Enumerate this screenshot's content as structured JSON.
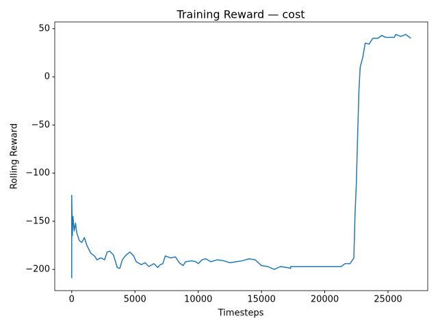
{
  "chart_data": {
    "type": "line",
    "title": "Training Reward — cost",
    "xlabel": "Timesteps",
    "ylabel": "Rolling Reward",
    "x": [
      0,
      0,
      50,
      100,
      200,
      300,
      400,
      600,
      800,
      1000,
      1200,
      1500,
      1800,
      2000,
      2300,
      2600,
      2800,
      3000,
      3300,
      3600,
      3800,
      4000,
      4300,
      4600,
      4900,
      5100,
      5500,
      5800,
      6100,
      6500,
      6800,
      7000,
      7200,
      7400,
      7800,
      8200,
      8500,
      8800,
      9000,
      9500,
      9800,
      10000,
      10300,
      10600,
      11000,
      11500,
      12000,
      12500,
      13000,
      13500,
      14000,
      14500,
      15000,
      15500,
      16000,
      16500,
      17000,
      17300,
      17300,
      20000,
      21300,
      21600,
      22000,
      22300,
      22400,
      22500,
      22600,
      22700,
      22800,
      23000,
      23200,
      23500,
      23800,
      24200,
      24500,
      24800,
      25500,
      25600,
      26000,
      26400,
      26800
    ],
    "series": [
      {
        "name": "reward",
        "color": "#1f77b4",
        "values": [
          -209,
          -123,
          -165,
          -145,
          -160,
          -152,
          -162,
          -170,
          -172,
          -167,
          -175,
          -183,
          -186,
          -190,
          -188,
          -190,
          -182,
          -181,
          -185,
          -198,
          -199,
          -190,
          -185,
          -182,
          -186,
          -192,
          -195,
          -193,
          -197,
          -194,
          -198,
          -195,
          -194,
          -186,
          -188,
          -187,
          -193,
          -196,
          -192,
          -191,
          -192,
          -194,
          -190,
          -189,
          -192,
          -190,
          -191,
          -193,
          -192,
          -191,
          -189,
          -190,
          -196,
          -197,
          -200,
          -197,
          -198,
          -199,
          -197,
          -197,
          -197,
          -194,
          -194,
          -188,
          -140,
          -110,
          -60,
          -15,
          10,
          20,
          35,
          34,
          40,
          40,
          43,
          41,
          41,
          44,
          42,
          44,
          40
        ]
      }
    ],
    "xlim": [
      -1340,
      28140
    ],
    "ylim": [
      -222,
      57
    ],
    "xticks": [
      0,
      5000,
      10000,
      15000,
      20000,
      25000
    ],
    "yticks": [
      {
        "value": -200,
        "label": "−200"
      },
      {
        "value": -150,
        "label": "−150"
      },
      {
        "value": -100,
        "label": "−100"
      },
      {
        "value": -50,
        "label": "−50"
      },
      0,
      50
    ],
    "grid": false
  }
}
